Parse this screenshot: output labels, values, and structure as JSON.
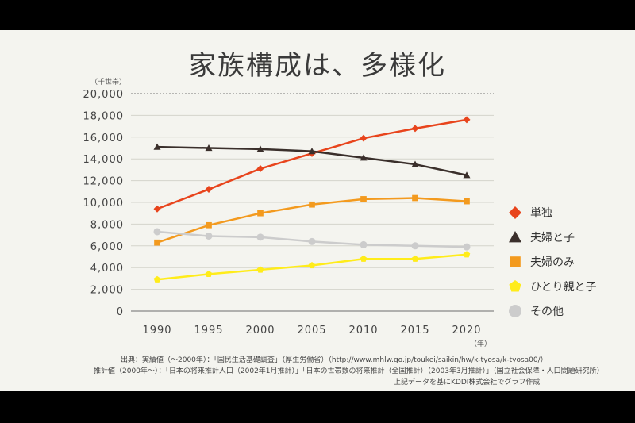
{
  "chart_data": {
    "type": "line",
    "title": "家族構成は、多様化",
    "ylabel": "（千世帯）",
    "xlabel": "（年）",
    "x": [
      "1990",
      "1995",
      "2000",
      "2005",
      "2010",
      "2015",
      "2020"
    ],
    "yticks": [
      "0",
      "2,000",
      "4,000",
      "6,000",
      "8,000",
      "10,000",
      "12,000",
      "14,000",
      "16,000",
      "18,000",
      "20,000"
    ],
    "ylim": [
      0,
      20000
    ],
    "grid": true,
    "legend_position": "right",
    "series": [
      {
        "name": "単独",
        "color": "#e8441c",
        "marker": "diamond",
        "values": [
          9400,
          11200,
          13100,
          14500,
          15900,
          16800,
          17600
        ]
      },
      {
        "name": "夫婦と子",
        "color": "#3a2f2b",
        "marker": "triangle",
        "values": [
          15100,
          15000,
          14900,
          14700,
          14100,
          13500,
          12500
        ]
      },
      {
        "name": "夫婦のみ",
        "color": "#f39a1e",
        "marker": "square",
        "values": [
          6300,
          7900,
          9000,
          9800,
          10300,
          10400,
          10100
        ]
      },
      {
        "name": "ひとり親と子",
        "color": "#ffec1a",
        "marker": "pentagon",
        "values": [
          2900,
          3400,
          3800,
          4200,
          4800,
          4800,
          5200
        ]
      },
      {
        "name": "その他",
        "color": "#cccccc",
        "marker": "circle",
        "values": [
          7300,
          6900,
          6800,
          6400,
          6100,
          6000,
          5900
        ]
      }
    ]
  },
  "source": {
    "line1": "出典：実績値（～2000年）：「国民生活基礎調査」（厚生労働省）（http://www.mhlw.go.jp/toukei/saikin/hw/k-tyosa/k-tyosa00/）",
    "line2": "推計値（2000年～）：「日本の将来推計人口（2002年1月推計）」「日本の世帯数の将来推計（全国推計）（2003年3月推計）」（国立社会保障・人口問題研究所）",
    "line3": "上記データを基にKDDI株式会社でグラフ作成"
  }
}
